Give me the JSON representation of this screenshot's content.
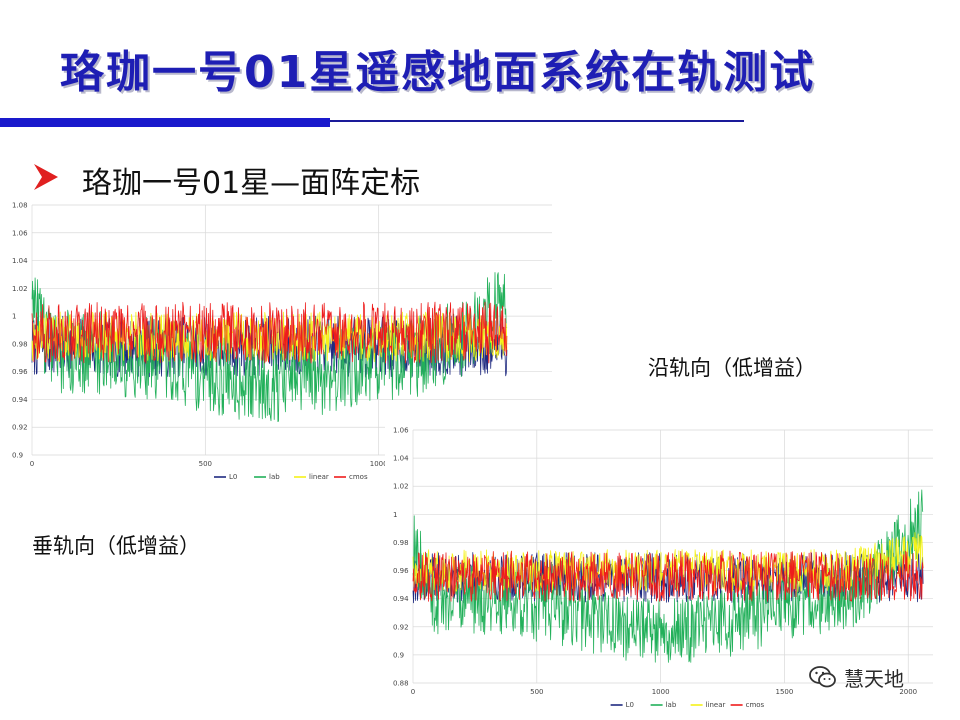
{
  "slide": {
    "title": "珞珈一号01星遥感地面系统在轨测试",
    "bullet": "珞珈一号01星—面阵定标",
    "caption_along": "沿轨向（低增益）",
    "caption_cross": "垂轨向（低增益）",
    "watermark": "慧天地"
  },
  "colors": {
    "title": "#1e1eb4",
    "accent_bar": "#1a1acc",
    "bullet_arrow": "#e02020",
    "L0": "#1f2a80",
    "lab": "#22b05a",
    "linear": "#f5f21a",
    "cmos": "#ee1c1c"
  },
  "chart_data": [
    {
      "type": "line",
      "yticks": [
        "1.08",
        "1.06",
        "1.04",
        "1.02",
        "1",
        "0.98",
        "0.96",
        "0.94",
        "0.92",
        "0.9"
      ],
      "xticks": [
        "0",
        "500",
        "1000"
      ],
      "ylim": [
        0.9,
        1.08
      ],
      "xlim": [
        0,
        1500
      ],
      "grid": true,
      "legend": "bottom",
      "series": [
        {
          "name": "L0",
          "level": 0.978,
          "noise": 0.022,
          "trend": 0
        },
        {
          "name": "lab",
          "level": 0.975,
          "noise": 0.03,
          "trend": 0.04
        },
        {
          "name": "linear",
          "level": 0.985,
          "noise": 0.018,
          "trend": 0
        },
        {
          "name": "cmos",
          "level": 0.988,
          "noise": 0.022,
          "trend": 0
        }
      ]
    },
    {
      "type": "line",
      "yticks": [
        "1.06",
        "1.04",
        "1.02",
        "1",
        "0.98",
        "0.96",
        "0.94",
        "0.92",
        "0.9",
        "0.88"
      ],
      "xticks": [
        "0",
        "500",
        "1000",
        "1500",
        "2000"
      ],
      "ylim": [
        0.88,
        1.06
      ],
      "xlim": [
        0,
        2100
      ],
      "grid": true,
      "legend": "bottom",
      "series": [
        {
          "name": "L0",
          "level": 0.955,
          "noise": 0.018,
          "trend": 0
        },
        {
          "name": "lab",
          "level": 0.94,
          "noise": 0.025,
          "trend": 0.06
        },
        {
          "name": "linear",
          "level": 0.96,
          "noise": 0.015,
          "trend": 0.015
        },
        {
          "name": "cmos",
          "level": 0.956,
          "noise": 0.018,
          "trend": 0
        }
      ]
    }
  ]
}
